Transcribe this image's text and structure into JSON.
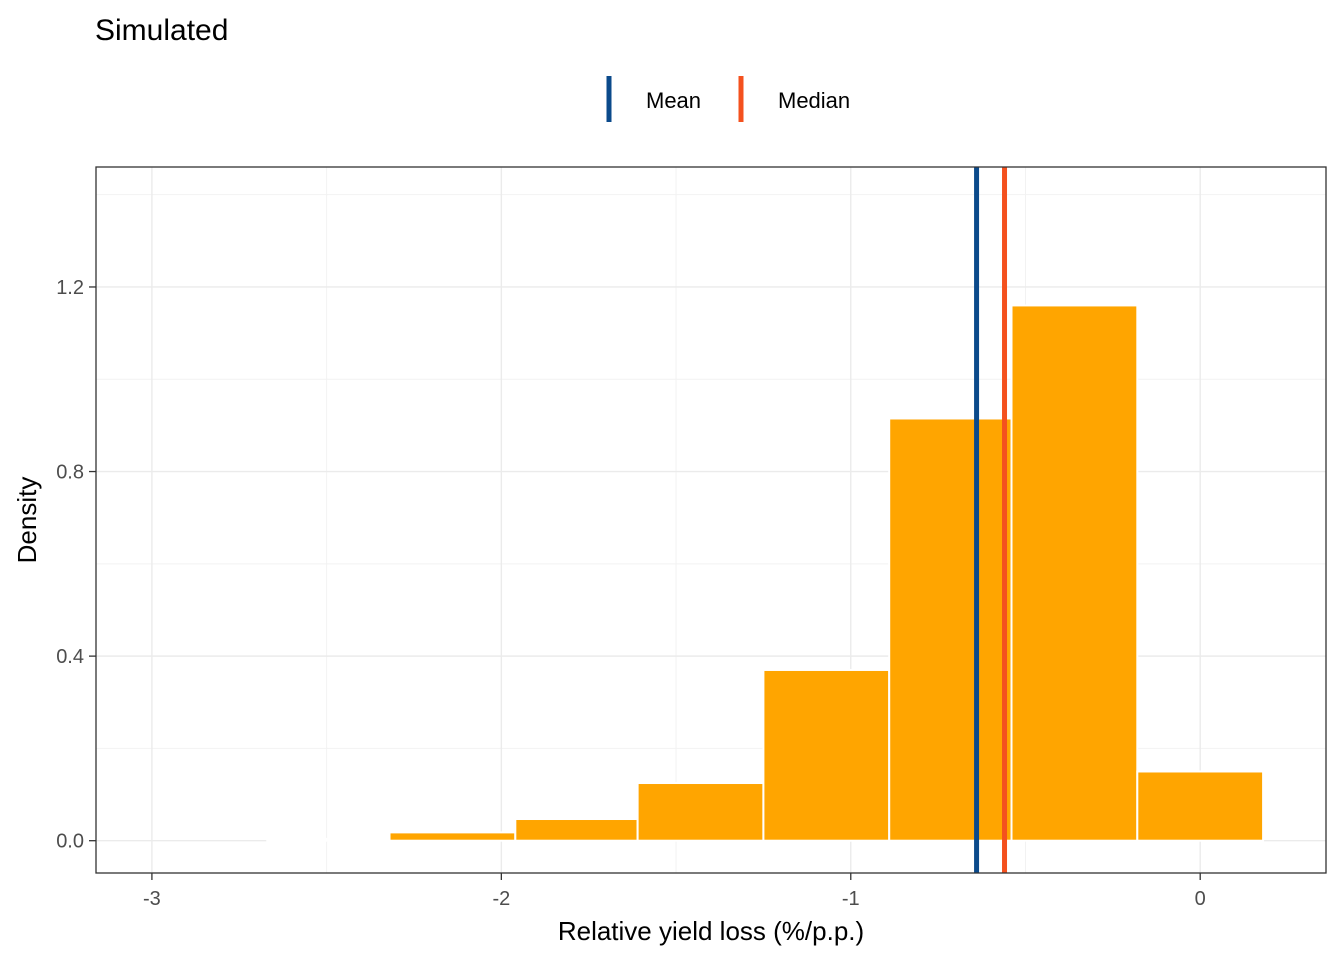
{
  "chart_data": {
    "type": "bar",
    "title": "Simulated",
    "xlabel": "Relative yield loss (%/p.p.)",
    "ylabel": "Density",
    "xlim": [
      -3.16,
      0.36
    ],
    "ylim": [
      -0.07,
      1.46
    ],
    "x_ticks": [
      {
        "value": -3,
        "label": "-3"
      },
      {
        "value": -2,
        "label": "-2"
      },
      {
        "value": -1,
        "label": "-1"
      },
      {
        "value": 0,
        "label": "0"
      }
    ],
    "y_ticks": [
      {
        "value": 0.0,
        "label": "0.0"
      },
      {
        "value": 0.4,
        "label": "0.4"
      },
      {
        "value": 0.8,
        "label": "0.8"
      },
      {
        "value": 1.2,
        "label": "1.2"
      }
    ],
    "grid": true,
    "bins": [
      {
        "x0": -2.67,
        "x1": -2.32,
        "density": 0.004
      },
      {
        "x0": -2.32,
        "x1": -1.96,
        "density": 0.018
      },
      {
        "x0": -1.96,
        "x1": -1.61,
        "density": 0.047
      },
      {
        "x0": -1.61,
        "x1": -1.25,
        "density": 0.125
      },
      {
        "x0": -1.25,
        "x1": -0.89,
        "density": 0.37
      },
      {
        "x0": -0.89,
        "x1": -0.54,
        "density": 0.915
      },
      {
        "x0": -0.54,
        "x1": -0.18,
        "density": 1.16
      },
      {
        "x0": -0.18,
        "x1": 0.18,
        "density": 0.15
      }
    ],
    "bar_color": "#FFA500",
    "vlines": [
      {
        "name": "Mean",
        "x": -0.64,
        "color": "#0B4A8B"
      },
      {
        "name": "Median",
        "x": -0.56,
        "color": "#F4511E"
      }
    ],
    "legend": {
      "position": "top",
      "items": [
        {
          "label": "Mean",
          "color": "#0B4A8B"
        },
        {
          "label": "Median",
          "color": "#F4511E"
        }
      ]
    }
  }
}
